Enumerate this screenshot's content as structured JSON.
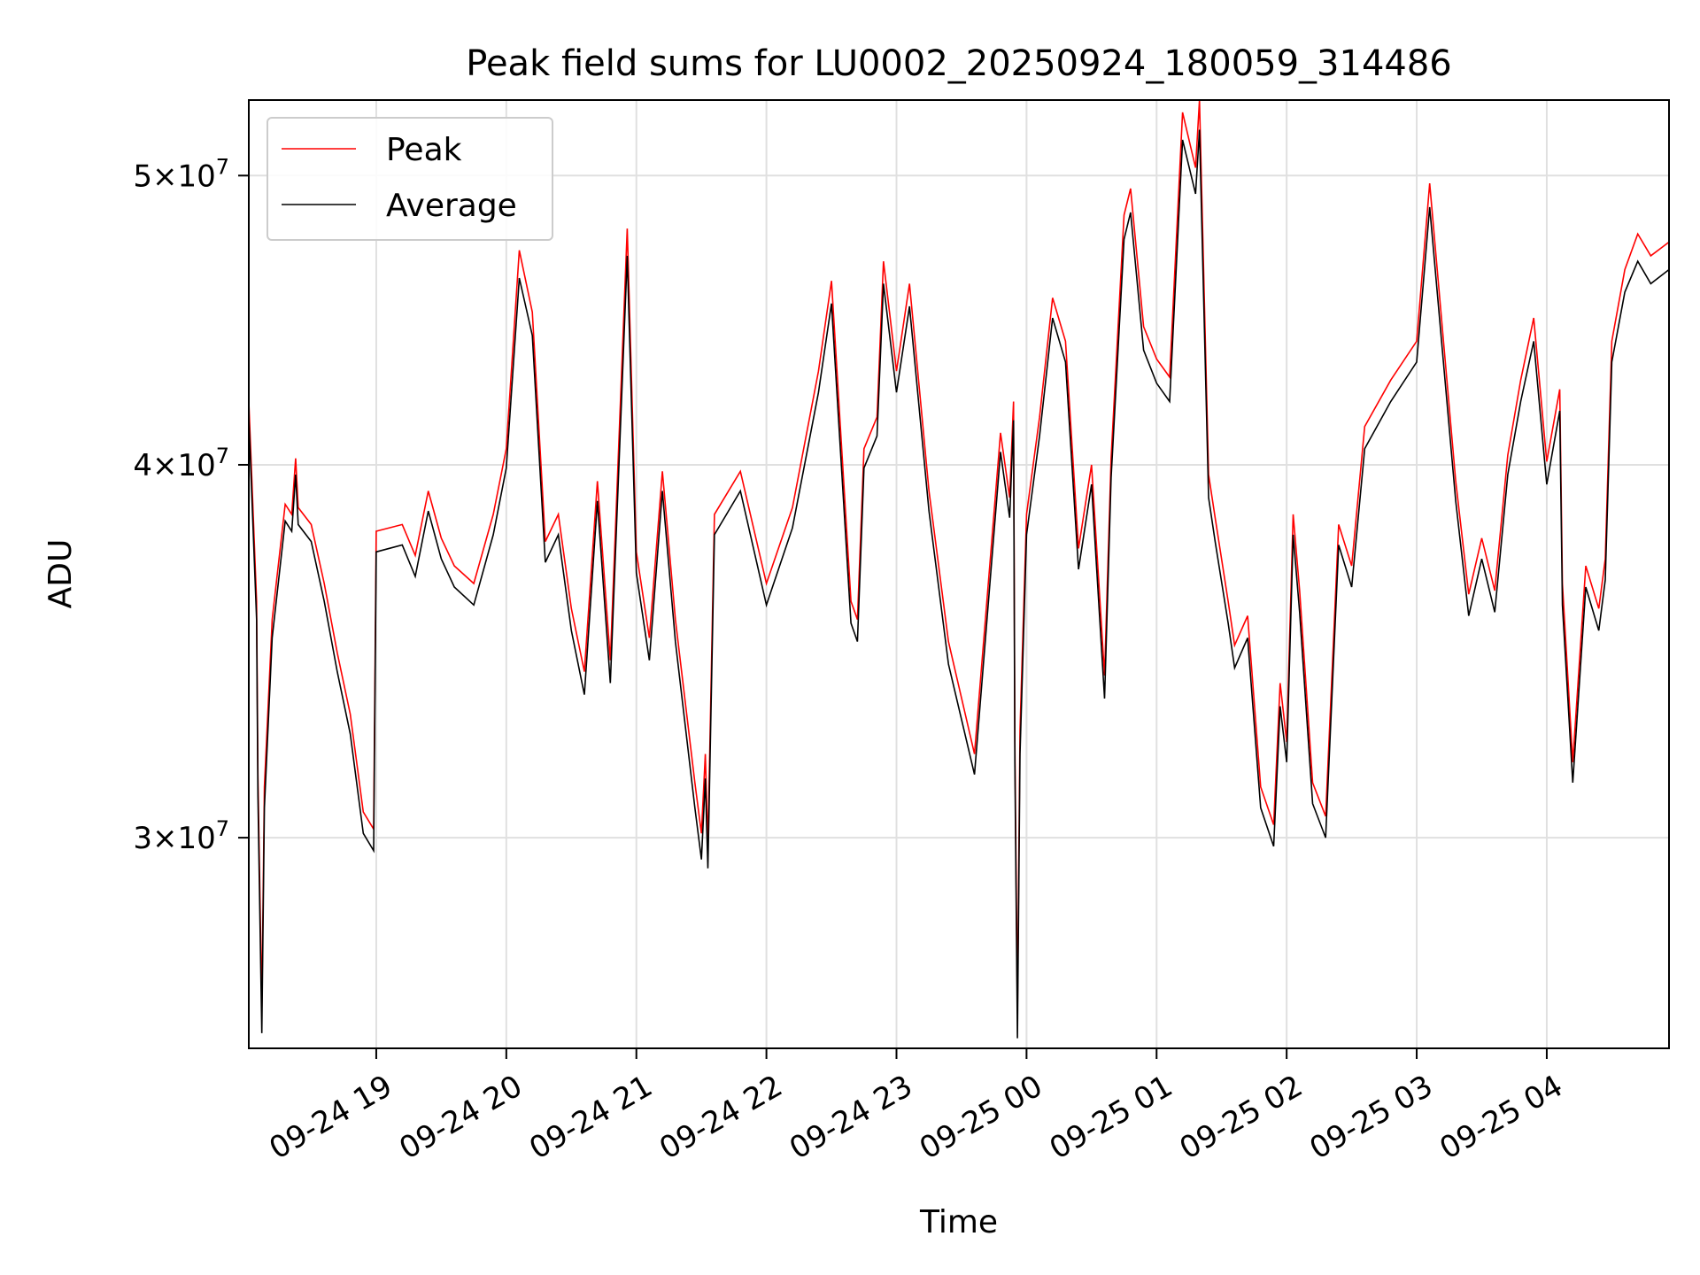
{
  "chart_data": {
    "type": "line",
    "title": "Peak field sums for LU0002_20250924_180059_314486",
    "xlabel": "Time",
    "ylabel": "ADU",
    "yscale": "log",
    "ylim": [
      25500000,
      53000000
    ],
    "xlim_hours": [
      18.02,
      28.94
    ],
    "grid": true,
    "legend_position": "top-left",
    "x_ticks": [
      {
        "hour": 19,
        "label": "09-24 19"
      },
      {
        "hour": 20,
        "label": "09-24 20"
      },
      {
        "hour": 21,
        "label": "09-24 21"
      },
      {
        "hour": 22,
        "label": "09-24 22"
      },
      {
        "hour": 23,
        "label": "09-24 23"
      },
      {
        "hour": 24,
        "label": "09-25 00"
      },
      {
        "hour": 25,
        "label": "09-25 01"
      },
      {
        "hour": 26,
        "label": "09-25 02"
      },
      {
        "hour": 27,
        "label": "09-25 03"
      },
      {
        "hour": 28,
        "label": "09-25 04"
      }
    ],
    "y_ticks": [
      {
        "value": 30000000,
        "mantissa": "3",
        "base": "10",
        "exp": "7"
      },
      {
        "value": 40000000,
        "mantissa": "4",
        "base": "10",
        "exp": "7"
      },
      {
        "value": 50000000,
        "mantissa": "5",
        "base": "10",
        "exp": "7"
      }
    ],
    "x_hours": [
      18.02,
      18.08,
      18.09,
      18.12,
      18.14,
      18.2,
      18.3,
      18.35,
      18.38,
      18.4,
      18.5,
      18.6,
      18.7,
      18.8,
      18.9,
      18.98,
      19.0,
      19.2,
      19.3,
      19.4,
      19.5,
      19.6,
      19.75,
      19.9,
      20.0,
      20.1,
      20.2,
      20.3,
      20.4,
      20.5,
      20.6,
      20.7,
      20.8,
      20.93,
      21.0,
      21.1,
      21.2,
      21.3,
      21.45,
      21.5,
      21.53,
      21.55,
      21.6,
      21.8,
      22.0,
      22.2,
      22.4,
      22.5,
      22.65,
      22.7,
      22.75,
      22.85,
      22.9,
      23.0,
      23.1,
      23.25,
      23.4,
      23.6,
      23.8,
      23.87,
      23.9,
      23.91,
      23.93,
      23.95,
      24.0,
      24.1,
      24.2,
      24.3,
      24.4,
      24.5,
      24.6,
      24.65,
      24.75,
      24.8,
      24.9,
      25.0,
      25.1,
      25.2,
      25.3,
      25.33,
      25.4,
      25.45,
      25.55,
      25.6,
      25.7,
      25.8,
      25.9,
      25.95,
      26.0,
      26.05,
      26.1,
      26.2,
      26.3,
      26.4,
      26.5,
      26.6,
      26.8,
      27.0,
      27.1,
      27.3,
      27.4,
      27.5,
      27.6,
      27.7,
      27.8,
      27.9,
      28.0,
      28.1,
      28.12,
      28.2,
      28.3,
      28.4,
      28.45,
      28.5,
      28.6,
      28.7,
      28.8,
      28.94
    ],
    "series": [
      {
        "name": "Peak",
        "color": "#ff0000",
        "values": [
          42000000,
          36000000,
          31500000,
          26300000,
          31200000,
          35500000,
          38800000,
          38500000,
          40200000,
          38700000,
          38200000,
          36500000,
          34600000,
          33000000,
          30600000,
          30200000,
          38000000,
          38200000,
          37300000,
          39200000,
          37800000,
          37000000,
          36500000,
          38500000,
          40500000,
          47200000,
          45000000,
          37700000,
          38500000,
          35800000,
          34100000,
          39500000,
          34400000,
          48000000,
          37400000,
          35000000,
          39800000,
          35500000,
          31300000,
          30100000,
          32000000,
          29800000,
          38500000,
          39800000,
          36500000,
          38700000,
          43000000,
          46100000,
          36000000,
          35500000,
          40500000,
          41500000,
          46800000,
          43000000,
          46000000,
          39200000,
          34900000,
          32000000,
          41000000,
          39000000,
          42000000,
          32300000,
          26200000,
          32600000,
          38500000,
          41500000,
          45500000,
          44000000,
          37500000,
          40000000,
          34000000,
          40200000,
          48500000,
          49500000,
          44500000,
          43400000,
          42800000,
          52500000,
          50300000,
          53000000,
          39700000,
          38400000,
          36000000,
          34800000,
          35600000,
          31200000,
          30300000,
          33800000,
          32300000,
          38500000,
          36300000,
          31300000,
          30500000,
          38200000,
          37000000,
          41200000,
          42700000,
          44000000,
          49700000,
          39500000,
          36200000,
          37800000,
          36300000,
          40300000,
          42700000,
          44800000,
          40100000,
          42400000,
          36500000,
          31800000,
          37000000,
          35800000,
          37200000,
          44000000,
          46500000,
          47800000,
          47000000,
          47500000
        ]
      },
      {
        "name": "Average",
        "color": "#000000",
        "values": [
          41500000,
          35500000,
          31000000,
          25800000,
          30700000,
          35000000,
          38300000,
          38000000,
          39700000,
          38200000,
          37700000,
          36000000,
          34100000,
          32500000,
          30100000,
          29700000,
          37400000,
          37600000,
          36700000,
          38600000,
          37200000,
          36400000,
          35900000,
          37900000,
          39900000,
          46200000,
          44200000,
          37100000,
          37900000,
          35200000,
          33500000,
          38900000,
          33800000,
          47000000,
          36800000,
          34400000,
          39200000,
          34900000,
          30700000,
          29500000,
          31400000,
          29300000,
          37900000,
          39200000,
          35900000,
          38100000,
          42300000,
          45300000,
          35400000,
          34900000,
          39900000,
          40900000,
          46000000,
          42300000,
          45200000,
          38600000,
          34300000,
          31500000,
          40400000,
          38400000,
          41400000,
          31800000,
          25700000,
          32000000,
          37900000,
          40900000,
          44800000,
          43300000,
          36900000,
          39400000,
          33400000,
          39600000,
          47600000,
          48600000,
          43700000,
          42600000,
          42000000,
          51400000,
          49300000,
          51800000,
          39000000,
          37700000,
          35400000,
          34200000,
          35000000,
          30700000,
          29800000,
          33200000,
          31800000,
          37900000,
          35700000,
          30800000,
          30000000,
          37600000,
          36400000,
          40500000,
          42000000,
          43300000,
          48800000,
          38900000,
          35600000,
          37200000,
          35700000,
          39700000,
          42000000,
          44000000,
          39400000,
          41700000,
          35900000,
          31300000,
          36400000,
          35200000,
          36600000,
          43300000,
          45700000,
          46800000,
          46000000,
          46500000
        ]
      }
    ]
  },
  "legend": {
    "peak_label": "Peak",
    "average_label": "Average"
  }
}
